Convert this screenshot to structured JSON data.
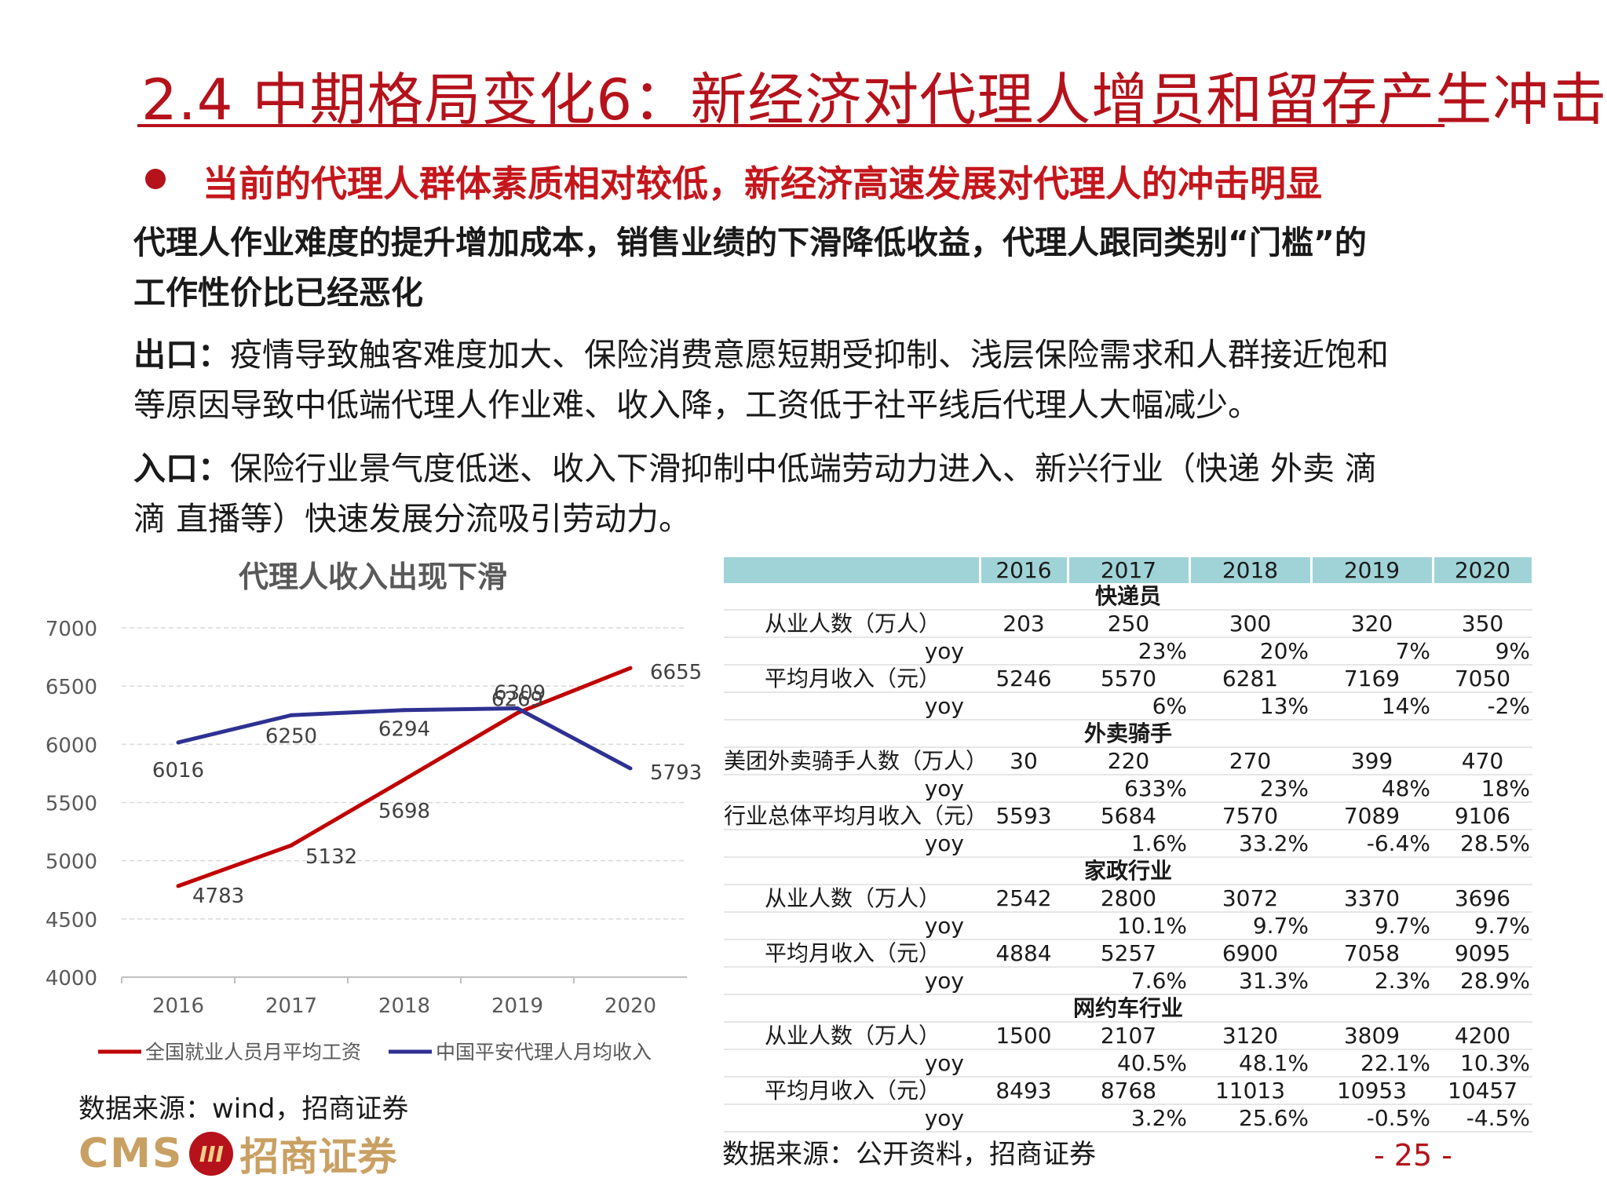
{
  "title": "2.4  中期格局变化6：新经济对代理人增员和留存产生冲击",
  "bullet": "当前的代理人群体素质相对较低，新经济高速发展对代理人的冲击明显",
  "paragraph1": [
    "代理人作业难度的提升增加成本，销售业绩的下滑降低收益，代理人跟同类别“门槛”的",
    "工作性价比已经恶化"
  ],
  "exit": {
    "label": "出口：",
    "lines": [
      "疫情导致触客难度加大、保险消费意愿短期受抑制、浅层保险需求和人群接近饱和",
      "等原因导致中低端代理人作业难、收入降，工资低于社平线后代理人大幅减少。"
    ]
  },
  "entry": {
    "label": "入口：",
    "lines": [
      "保险行业景气度低迷、收入下滑抑制中低端劳动力进入、新兴行业（快递 外卖 滴",
      "滴 直播等）快速发展分流吸引劳动力。"
    ]
  },
  "chart_data": {
    "type": "line",
    "title": "代理人收入出现下滑",
    "categories": [
      "2016",
      "2017",
      "2018",
      "2019",
      "2020"
    ],
    "ylim": [
      4000,
      7000
    ],
    "yticks": [
      "4000",
      "4500",
      "5000",
      "5500",
      "6000",
      "6500",
      "7000"
    ],
    "grid": true,
    "legend_position": "bottom",
    "series": [
      {
        "name": "全国就业人员月平均工资",
        "color": "#c00000",
        "values": [
          4783,
          5132,
          5698,
          6269,
          6655
        ]
      },
      {
        "name": "中国平安代理人月均收入",
        "color": "#2e3192",
        "values": [
          6016,
          6250,
          6294,
          6309,
          5793
        ]
      }
    ]
  },
  "source_left": "数据来源：wind，招商证券",
  "table": {
    "years": [
      "2016",
      "2017",
      "2018",
      "2019",
      "2020"
    ],
    "sections": [
      {
        "title": "快递员",
        "rows": [
          {
            "label": "从业人数（万人）",
            "values": [
              "203",
              "250",
              "300",
              "320",
              "350"
            ]
          },
          {
            "label": "yoy",
            "values": [
              "",
              "23%",
              "20%",
              "7%",
              "9%"
            ]
          },
          {
            "label": "平均月收入（元）",
            "values": [
              "5246",
              "5570",
              "6281",
              "7169",
              "7050"
            ]
          },
          {
            "label": "yoy",
            "values": [
              "",
              "6%",
              "13%",
              "14%",
              "-2%"
            ]
          }
        ]
      },
      {
        "title": "外卖骑手",
        "rows": [
          {
            "label": "美团外卖骑手人数（万人）",
            "values": [
              "30",
              "220",
              "270",
              "399",
              "470"
            ]
          },
          {
            "label": "yoy",
            "values": [
              "",
              "633%",
              "23%",
              "48%",
              "18%"
            ]
          },
          {
            "label": "行业总体平均月收入（元）",
            "values": [
              "5593",
              "5684",
              "7570",
              "7089",
              "9106"
            ]
          },
          {
            "label": "yoy",
            "values": [
              "",
              "1.6%",
              "33.2%",
              "-6.4%",
              "28.5%"
            ]
          }
        ]
      },
      {
        "title": "家政行业",
        "rows": [
          {
            "label": "从业人数（万人）",
            "values": [
              "2542",
              "2800",
              "3072",
              "3370",
              "3696"
            ]
          },
          {
            "label": "yoy",
            "values": [
              "",
              "10.1%",
              "9.7%",
              "9.7%",
              "9.7%"
            ]
          },
          {
            "label": "平均月收入（元）",
            "values": [
              "4884",
              "5257",
              "6900",
              "7058",
              "9095"
            ]
          },
          {
            "label": "yoy",
            "values": [
              "",
              "7.6%",
              "31.3%",
              "2.3%",
              "28.9%"
            ]
          }
        ]
      },
      {
        "title": "网约车行业",
        "rows": [
          {
            "label": "从业人数（万人）",
            "values": [
              "1500",
              "2107",
              "3120",
              "3809",
              "4200"
            ]
          },
          {
            "label": "yoy",
            "values": [
              "",
              "40.5%",
              "48.1%",
              "22.1%",
              "10.3%"
            ]
          },
          {
            "label": "平均月收入（元）",
            "values": [
              "8493",
              "8768",
              "11013",
              "10953",
              "10457"
            ]
          },
          {
            "label": "yoy",
            "values": [
              "",
              "3.2%",
              "25.6%",
              "-0.5%",
              "-4.5%"
            ]
          }
        ]
      }
    ]
  },
  "source_right": "数据来源：公开资料，招商证券",
  "logo": {
    "cms": "CMS",
    "mark": "III",
    "cn": "招商证券"
  },
  "page_number": "- 25 -"
}
